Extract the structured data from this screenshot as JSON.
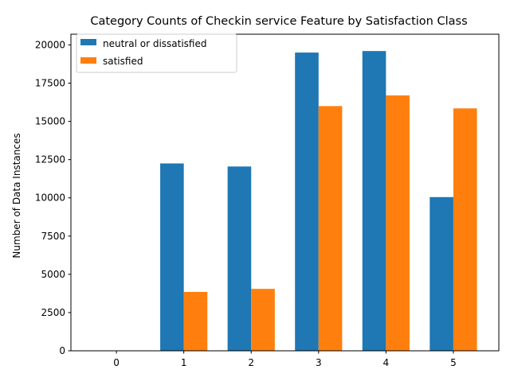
{
  "chart_data": {
    "type": "bar",
    "title": "Category Counts of Checkin service Feature by Satisfaction Class",
    "xlabel": "",
    "ylabel": "Number of Data Instances",
    "categories": [
      "0",
      "1",
      "2",
      "3",
      "4",
      "5"
    ],
    "ylim": [
      0,
      20700
    ],
    "yticks": [
      0,
      2500,
      5000,
      7500,
      10000,
      12500,
      15000,
      17500,
      20000
    ],
    "grid": false,
    "legend_position": "top-left",
    "series": [
      {
        "name": "neutral or dissatisfied",
        "color": "#1f77b4",
        "values": [
          0,
          12250,
          12050,
          19500,
          19600,
          10050
        ]
      },
      {
        "name": "satisfied",
        "color": "#ff7f0e",
        "values": [
          0,
          3850,
          4050,
          16000,
          16700,
          15850
        ]
      }
    ]
  }
}
